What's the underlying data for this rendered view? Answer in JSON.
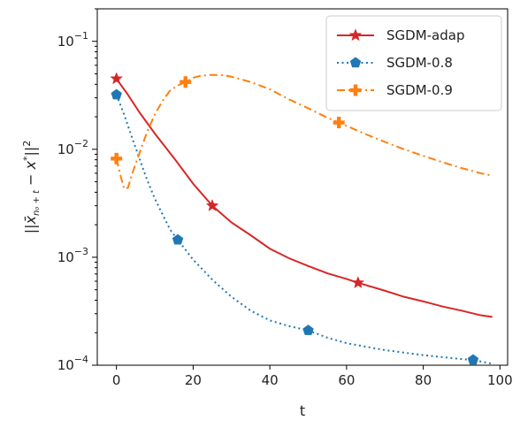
{
  "chart_data": {
    "type": "line",
    "title": "",
    "xlabel": "t",
    "ylabel": "||x̄_{n0+t} − x*||²",
    "xlim": [
      -5,
      102
    ],
    "ylim": [
      0.0001,
      0.2
    ],
    "yscale": "log",
    "grid": false,
    "legend_position": "top-right",
    "x_ticks": [
      0,
      20,
      40,
      60,
      80,
      100
    ],
    "y_ticks": [
      {
        "value": 0.1,
        "base": "10",
        "exp": "−1"
      },
      {
        "value": 0.01,
        "base": "10",
        "exp": "−2"
      },
      {
        "value": 0.001,
        "base": "10",
        "exp": "−3"
      },
      {
        "value": 0.0001,
        "base": "10",
        "exp": "−4"
      }
    ],
    "series": [
      {
        "name": "SGDM-adap",
        "color": "#d62728",
        "linestyle": "solid",
        "marker": "star",
        "x": [
          0,
          3,
          6,
          10,
          15,
          20,
          25,
          30,
          35,
          40,
          45,
          50,
          55,
          60,
          63,
          70,
          75,
          80,
          85,
          90,
          95,
          98
        ],
        "y": [
          0.045,
          0.032,
          0.022,
          0.014,
          0.0083,
          0.0048,
          0.003,
          0.0021,
          0.0016,
          0.0012,
          0.00098,
          0.00083,
          0.00071,
          0.00063,
          0.00058,
          0.00049,
          0.00043,
          0.00039,
          0.00035,
          0.00032,
          0.00029,
          0.00028
        ],
        "markers": [
          {
            "x": 0,
            "y": 0.045
          },
          {
            "x": 25,
            "y": 0.003
          },
          {
            "x": 63,
            "y": 0.00058
          }
        ]
      },
      {
        "name": "SGDM-0.8",
        "color": "#1f77b4",
        "linestyle": "dotted",
        "marker": "pentagon",
        "x": [
          0,
          2,
          4,
          6,
          8,
          10,
          12,
          14,
          16,
          20,
          25,
          30,
          35,
          40,
          45,
          50,
          55,
          60,
          70,
          80,
          90,
          93,
          98
        ],
        "y": [
          0.032,
          0.021,
          0.013,
          0.0082,
          0.0052,
          0.0035,
          0.0025,
          0.0018,
          0.00145,
          0.00095,
          0.00062,
          0.00043,
          0.00032,
          0.00026,
          0.00023,
          0.00021,
          0.00018,
          0.00016,
          0.000138,
          0.000124,
          0.000114,
          0.000112,
          0.000103
        ],
        "markers": [
          {
            "x": 0,
            "y": 0.032
          },
          {
            "x": 16,
            "y": 0.00145
          },
          {
            "x": 50,
            "y": 0.00021
          },
          {
            "x": 93,
            "y": 0.000112
          }
        ]
      },
      {
        "name": "SGDM-0.9",
        "color": "#ff7f0e",
        "linestyle": "dashdot",
        "marker": "plus",
        "x": [
          0,
          1,
          2,
          3,
          4,
          6,
          8,
          10,
          12,
          14,
          16,
          18,
          20,
          22,
          25,
          28,
          30,
          35,
          40,
          45,
          50,
          55,
          58,
          65,
          70,
          75,
          80,
          85,
          90,
          95,
          98
        ],
        "y": [
          0.0082,
          0.0058,
          0.0043,
          0.0044,
          0.0058,
          0.0092,
          0.0145,
          0.021,
          0.028,
          0.035,
          0.039,
          0.042,
          0.046,
          0.048,
          0.049,
          0.0485,
          0.047,
          0.042,
          0.036,
          0.029,
          0.024,
          0.0196,
          0.0177,
          0.0138,
          0.0117,
          0.01,
          0.0087,
          0.0076,
          0.0067,
          0.006,
          0.0057
        ],
        "markers": [
          {
            "x": 0,
            "y": 0.0082
          },
          {
            "x": 18,
            "y": 0.042
          },
          {
            "x": 58,
            "y": 0.0177
          }
        ]
      }
    ]
  }
}
